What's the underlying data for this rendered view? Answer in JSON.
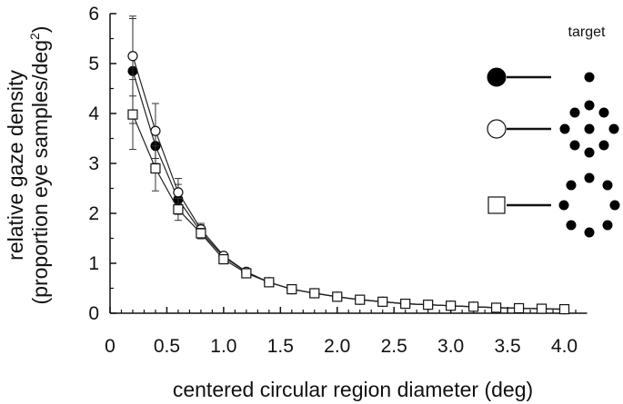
{
  "chart_data": {
    "type": "line",
    "title": "",
    "xlabel": "centered circular region diameter (deg)",
    "ylabel_line1": "relative gaze density",
    "ylabel_line2": "(proportion eye samples/deg",
    "ylabel_superscript": "2",
    "ylabel_close": ")",
    "xlim": [
      0,
      4.2
    ],
    "ylim": [
      0,
      6
    ],
    "x_ticks": [
      0,
      0.5,
      1.0,
      1.5,
      2.0,
      2.5,
      3.0,
      3.5,
      4.0
    ],
    "x_tick_labels": [
      "0",
      "0.5",
      "1.0",
      "1.5",
      "2.0",
      "2.5",
      "3.0",
      "3.5",
      "4.0"
    ],
    "y_ticks": [
      0,
      1,
      2,
      3,
      4,
      5,
      6
    ],
    "y_tick_labels": [
      "0",
      "1",
      "2",
      "3",
      "4",
      "5",
      "6"
    ],
    "x": [
      0.2,
      0.4,
      0.6,
      0.8,
      1.0,
      1.2,
      1.4,
      1.6,
      1.8,
      2.0,
      2.2,
      2.4,
      2.6,
      2.8,
      3.0,
      3.2,
      3.4,
      3.6,
      3.8,
      4.0
    ],
    "series": [
      {
        "name": "single dot target",
        "marker": "filled-circle",
        "values": [
          4.85,
          3.35,
          2.28,
          1.63,
          1.13,
          0.82,
          0.62,
          0.48,
          0.4,
          0.33,
          0.27,
          0.23,
          0.19,
          0.17,
          0.15,
          0.13,
          0.11,
          0.1,
          0.09,
          0.08
        ],
        "error": [
          1.05,
          0.35,
          0.3,
          0.14,
          0,
          0,
          0,
          0,
          0,
          0,
          0,
          0,
          0,
          0,
          0,
          0,
          0,
          0,
          0,
          0
        ]
      },
      {
        "name": "filled dot cluster target",
        "marker": "open-circle",
        "values": [
          5.15,
          3.65,
          2.42,
          1.68,
          1.15,
          0.83,
          0.62,
          0.48,
          0.4,
          0.33,
          0.27,
          0.23,
          0.19,
          0.17,
          0.15,
          0.13,
          0.11,
          0.1,
          0.09,
          0.08
        ],
        "error": [
          0.8,
          0.55,
          0.28,
          0.12,
          0,
          0,
          0,
          0,
          0,
          0,
          0,
          0,
          0,
          0,
          0,
          0,
          0,
          0,
          0,
          0
        ]
      },
      {
        "name": "ring dot target",
        "marker": "open-square",
        "values": [
          3.98,
          2.9,
          2.08,
          1.6,
          1.08,
          0.8,
          0.62,
          0.48,
          0.4,
          0.33,
          0.27,
          0.23,
          0.19,
          0.17,
          0.15,
          0.13,
          0.11,
          0.1,
          0.09,
          0.08
        ],
        "error": [
          0.7,
          0.45,
          0.22,
          0.1,
          0,
          0,
          0,
          0,
          0,
          0,
          0,
          0,
          0,
          0,
          0,
          0,
          0,
          0,
          0,
          0
        ]
      }
    ],
    "legend": {
      "title": "target",
      "placement": "top-right",
      "entries": [
        {
          "marker": "filled-circle",
          "target_icon": "single-dot"
        },
        {
          "marker": "open-circle",
          "target_icon": "filled-dot-cluster"
        },
        {
          "marker": "open-square",
          "target_icon": "ring-of-dots"
        }
      ]
    },
    "grid": false
  }
}
